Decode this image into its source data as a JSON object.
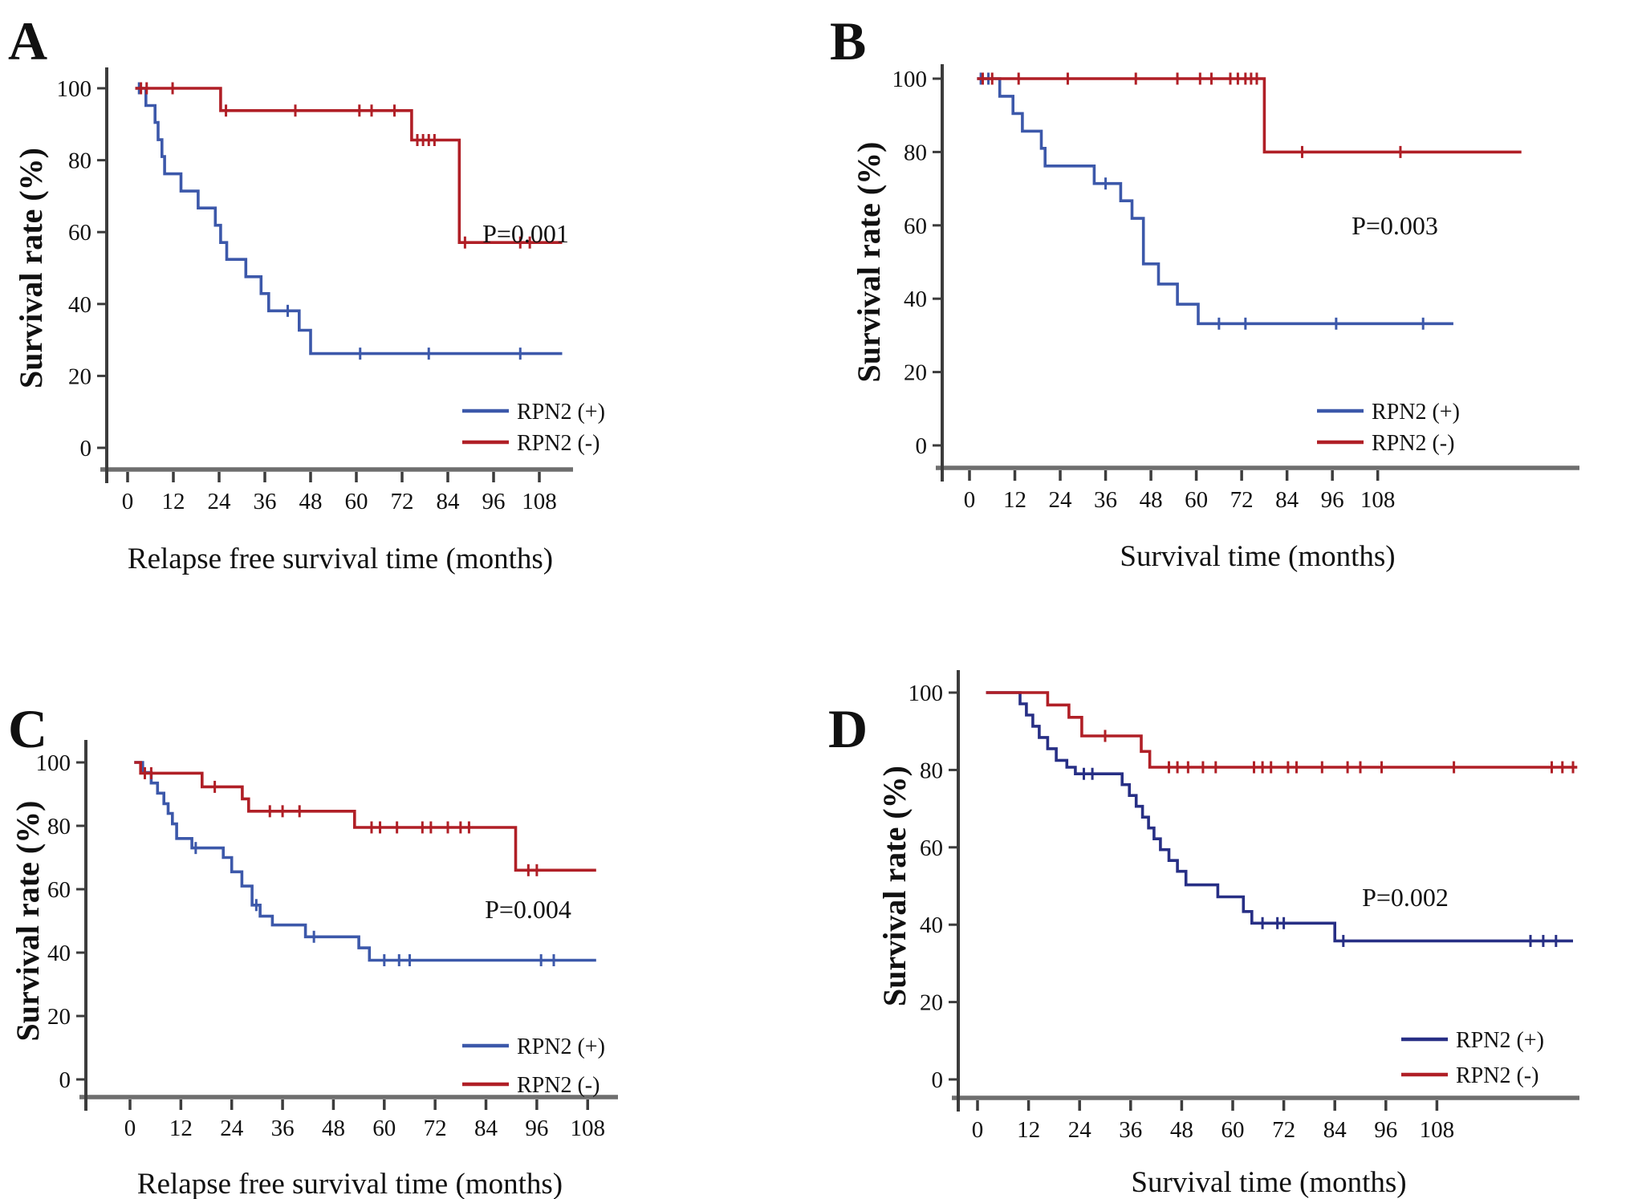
{
  "figure_title": "RPN2 Kaplan-Meier survival analysis",
  "accent_colors": {
    "rpn2_positive_blue": "#3c58aa",
    "rpn2_positive_navy": "#272f85",
    "rpn2_negative_red": "#b01f26",
    "x_axis_gray": "#6e6e6e",
    "axis_dark": "#3c3c3c"
  },
  "chart_data": [
    {
      "type": "line",
      "subtype": "kaplan-meier-step",
      "panel": "A",
      "panel_letter": "A",
      "p_value": "P=0.001",
      "xlabel": "Relapse free survival time (months)",
      "ylabel": "Survival rate (%)",
      "x_ticks": [
        0,
        12,
        24,
        36,
        48,
        60,
        72,
        84,
        96,
        108
      ],
      "y_ticks": [
        0,
        20,
        40,
        60,
        80,
        100
      ],
      "xlim": [
        0,
        114
      ],
      "ylim": [
        0,
        100
      ],
      "legend": [
        {
          "label": "RPN2 (+)",
          "color": "#3c58aa"
        },
        {
          "label": "RPN2 (-)",
          "color": "#b01f26"
        }
      ],
      "series": [
        {
          "name": "RPN2 (+)",
          "color": "#3c58aa",
          "start": 2,
          "end": 114,
          "steps": [
            [
              4.8,
              95.2
            ],
            [
              7.2,
              90.5
            ],
            [
              8,
              85.7
            ],
            [
              9,
              81
            ],
            [
              9.7,
              76.2
            ],
            [
              14,
              71.4
            ],
            [
              18.5,
              66.7
            ],
            [
              23,
              61.9
            ],
            [
              24.4,
              57.1
            ],
            [
              26,
              52.4
            ],
            [
              31,
              47.6
            ],
            [
              35,
              42.9
            ],
            [
              37,
              38.1
            ],
            [
              45,
              32.7
            ],
            [
              48,
              26.2
            ]
          ],
          "censors": [
            [
              3,
              100
            ],
            [
              42,
              38.1
            ],
            [
              61,
              26.2
            ],
            [
              79,
              26.2
            ],
            [
              103,
              26.2
            ]
          ]
        },
        {
          "name": "RPN2 (-)",
          "color": "#b01f26",
          "start": 2,
          "end": 114,
          "steps": [
            [
              24.4,
              93.8
            ],
            [
              74.5,
              85.6
            ],
            [
              87,
              57.1
            ]
          ],
          "censors": [
            [
              3.5,
              100
            ],
            [
              5,
              100
            ],
            [
              11.8,
              100
            ],
            [
              25.8,
              93.8
            ],
            [
              44,
              93.8
            ],
            [
              60.8,
              93.8
            ],
            [
              64,
              93.8
            ],
            [
              70,
              93.8
            ],
            [
              76,
              85.6
            ],
            [
              77.5,
              85.6
            ],
            [
              79,
              85.6
            ],
            [
              80.5,
              85.6
            ],
            [
              88.5,
              57.1
            ],
            [
              103,
              57.1
            ],
            [
              105.5,
              57.1
            ]
          ]
        }
      ]
    },
    {
      "type": "line",
      "subtype": "kaplan-meier-step",
      "panel": "B",
      "panel_letter": "B",
      "p_value": "P=0.003",
      "xlabel": "Survival time (months)",
      "ylabel": "Survival rate (%)",
      "x_ticks": [
        0,
        12,
        24,
        36,
        48,
        60,
        72,
        84,
        96,
        108
      ],
      "y_ticks": [
        0,
        20,
        40,
        60,
        80,
        100
      ],
      "xlim": [
        0,
        146
      ],
      "ylim": [
        0,
        100
      ],
      "legend": [
        {
          "label": "RPN2 (+)",
          "color": "#3c58aa"
        },
        {
          "label": "RPN2 (-)",
          "color": "#b01f26"
        }
      ],
      "series": [
        {
          "name": "RPN2 (+)",
          "color": "#3c58aa",
          "start": 2,
          "end": 128,
          "steps": [
            [
              8,
              95.2
            ],
            [
              11.5,
              90.5
            ],
            [
              14,
              85.7
            ],
            [
              19,
              81
            ],
            [
              20,
              76.2
            ],
            [
              33,
              71.4
            ],
            [
              40,
              66.7
            ],
            [
              43,
              61.9
            ],
            [
              46,
              49.5
            ],
            [
              50,
              44
            ],
            [
              55,
              38.5
            ],
            [
              60.5,
              33.2
            ]
          ],
          "censors": [
            [
              3,
              100
            ],
            [
              5,
              100
            ],
            [
              36,
              71.4
            ],
            [
              66,
              33.2
            ],
            [
              73,
              33.2
            ],
            [
              97,
              33.2
            ],
            [
              120,
              33.2
            ]
          ]
        },
        {
          "name": "RPN2 (-)",
          "color": "#b01f26",
          "start": 2,
          "end": 146,
          "steps": [
            [
              78,
              80
            ]
          ],
          "censors": [
            [
              3.5,
              100
            ],
            [
              6,
              100
            ],
            [
              13,
              100
            ],
            [
              26,
              100
            ],
            [
              44,
              100
            ],
            [
              55,
              100
            ],
            [
              61,
              100
            ],
            [
              64,
              100
            ],
            [
              69,
              100
            ],
            [
              71,
              100
            ],
            [
              73,
              100
            ],
            [
              74.5,
              100
            ],
            [
              76,
              100
            ],
            [
              88,
              80
            ],
            [
              114,
              80
            ]
          ]
        }
      ]
    },
    {
      "type": "line",
      "subtype": "kaplan-meier-step",
      "panel": "C",
      "panel_letter": "C",
      "p_value": "P=0.004",
      "xlabel": "Relapse free survival time (months)",
      "ylabel": "Survival rate (%)",
      "x_ticks": [
        0,
        12,
        24,
        36,
        48,
        60,
        72,
        84,
        96,
        108
      ],
      "y_ticks": [
        0,
        20,
        40,
        60,
        80,
        100
      ],
      "xlim": [
        0,
        110
      ],
      "ylim": [
        0,
        100
      ],
      "legend": [
        {
          "label": "RPN2 (+)",
          "color": "#3c58aa"
        },
        {
          "label": "RPN2 (-)",
          "color": "#b01f26"
        }
      ],
      "series": [
        {
          "name": "RPN2 (+)",
          "color": "#3c58aa",
          "start": 1,
          "end": 110,
          "steps": [
            [
              3,
              96.8
            ],
            [
              5,
              93.5
            ],
            [
              6.5,
              90.3
            ],
            [
              8,
              87
            ],
            [
              9,
              83.9
            ],
            [
              10,
              80.6
            ],
            [
              11,
              76
            ],
            [
              14.6,
              73
            ],
            [
              22,
              70
            ],
            [
              24,
              65.5
            ],
            [
              26.4,
              61
            ],
            [
              28.8,
              55
            ],
            [
              30.7,
              51.5
            ],
            [
              33.6,
              48.7
            ],
            [
              41.4,
              45
            ],
            [
              54,
              41.5
            ],
            [
              56.5,
              37.6
            ]
          ],
          "censors": [
            [
              15.5,
              73
            ],
            [
              29.8,
              55
            ],
            [
              43.4,
              45
            ],
            [
              60,
              37.6
            ],
            [
              63.5,
              37.6
            ],
            [
              66,
              37.6
            ],
            [
              97,
              37.6
            ],
            [
              100,
              37.6
            ]
          ]
        },
        {
          "name": "RPN2 (-)",
          "color": "#b01f26",
          "start": 1,
          "end": 110,
          "steps": [
            [
              2.5,
              96.6
            ],
            [
              17,
              92.3
            ],
            [
              26.5,
              88.5
            ],
            [
              28,
              84.6
            ],
            [
              53,
              79.5
            ],
            [
              91,
              66
            ]
          ],
          "censors": [
            [
              3.5,
              96.6
            ],
            [
              5,
              96.6
            ],
            [
              20,
              92.3
            ],
            [
              33,
              84.6
            ],
            [
              36,
              84.6
            ],
            [
              40,
              84.6
            ],
            [
              57,
              79.5
            ],
            [
              59,
              79.5
            ],
            [
              63,
              79.5
            ],
            [
              69,
              79.5
            ],
            [
              71,
              79.5
            ],
            [
              75,
              79.5
            ],
            [
              78,
              79.5
            ],
            [
              80,
              79.5
            ],
            [
              94,
              66
            ],
            [
              96,
              66
            ]
          ]
        }
      ]
    },
    {
      "type": "line",
      "subtype": "kaplan-meier-step",
      "panel": "D",
      "panel_letter": "D",
      "p_value": "P=0.002",
      "xlabel": "Survival time (months)",
      "ylabel": "Survival rate (%)",
      "x_ticks": [
        0,
        12,
        24,
        36,
        48,
        60,
        72,
        84,
        96,
        108
      ],
      "y_ticks": [
        0,
        20,
        40,
        60,
        80,
        100
      ],
      "xlim": [
        0,
        141
      ],
      "ylim": [
        0,
        100
      ],
      "legend": [
        {
          "label": "RPN2 (+)",
          "color": "#272f85"
        },
        {
          "label": "RPN2 (-)",
          "color": "#b01f26"
        }
      ],
      "series": [
        {
          "name": "RPN2 (+)",
          "color": "#272f85",
          "start": 2,
          "end": 140,
          "steps": [
            [
              10,
              97.1
            ],
            [
              11.5,
              94.2
            ],
            [
              13,
              91.3
            ],
            [
              14.5,
              88.4
            ],
            [
              16.5,
              85.5
            ],
            [
              18.5,
              82.5
            ],
            [
              21,
              80.7
            ],
            [
              23,
              79
            ],
            [
              34,
              76.2
            ],
            [
              35.7,
              73.4
            ],
            [
              37.3,
              70.6
            ],
            [
              38.8,
              67.8
            ],
            [
              40.2,
              65
            ],
            [
              41.5,
              62.2
            ],
            [
              43,
              59.4
            ],
            [
              45,
              56.6
            ],
            [
              47,
              53.8
            ],
            [
              49,
              50.3
            ],
            [
              56.5,
              47.2
            ],
            [
              62.5,
              43.4
            ],
            [
              64.5,
              40.4
            ],
            [
              84,
              35.8
            ]
          ],
          "censors": [
            [
              25,
              79
            ],
            [
              27,
              79
            ],
            [
              67,
              40.4
            ],
            [
              70.5,
              40.4
            ],
            [
              72,
              40.4
            ],
            [
              86,
              35.8
            ],
            [
              130,
              35.8
            ],
            [
              133,
              35.8
            ],
            [
              136,
              35.8
            ]
          ]
        },
        {
          "name": "RPN2 (-)",
          "color": "#b01f26",
          "start": 2,
          "end": 141,
          "steps": [
            [
              16.5,
              96.8
            ],
            [
              21.5,
              93.6
            ],
            [
              24.5,
              88.8
            ],
            [
              38.5,
              84.8
            ],
            [
              40.5,
              80.7
            ]
          ],
          "censors": [
            [
              30,
              88.8
            ],
            [
              45,
              80.7
            ],
            [
              47,
              80.7
            ],
            [
              49.5,
              80.7
            ],
            [
              53,
              80.7
            ],
            [
              56,
              80.7
            ],
            [
              65,
              80.7
            ],
            [
              67,
              80.7
            ],
            [
              69,
              80.7
            ],
            [
              73,
              80.7
            ],
            [
              75,
              80.7
            ],
            [
              81,
              80.7
            ],
            [
              87,
              80.7
            ],
            [
              90,
              80.7
            ],
            [
              95,
              80.7
            ],
            [
              112,
              80.7
            ],
            [
              135,
              80.7
            ],
            [
              137.5,
              80.7
            ],
            [
              140,
              80.7
            ]
          ]
        }
      ]
    }
  ]
}
